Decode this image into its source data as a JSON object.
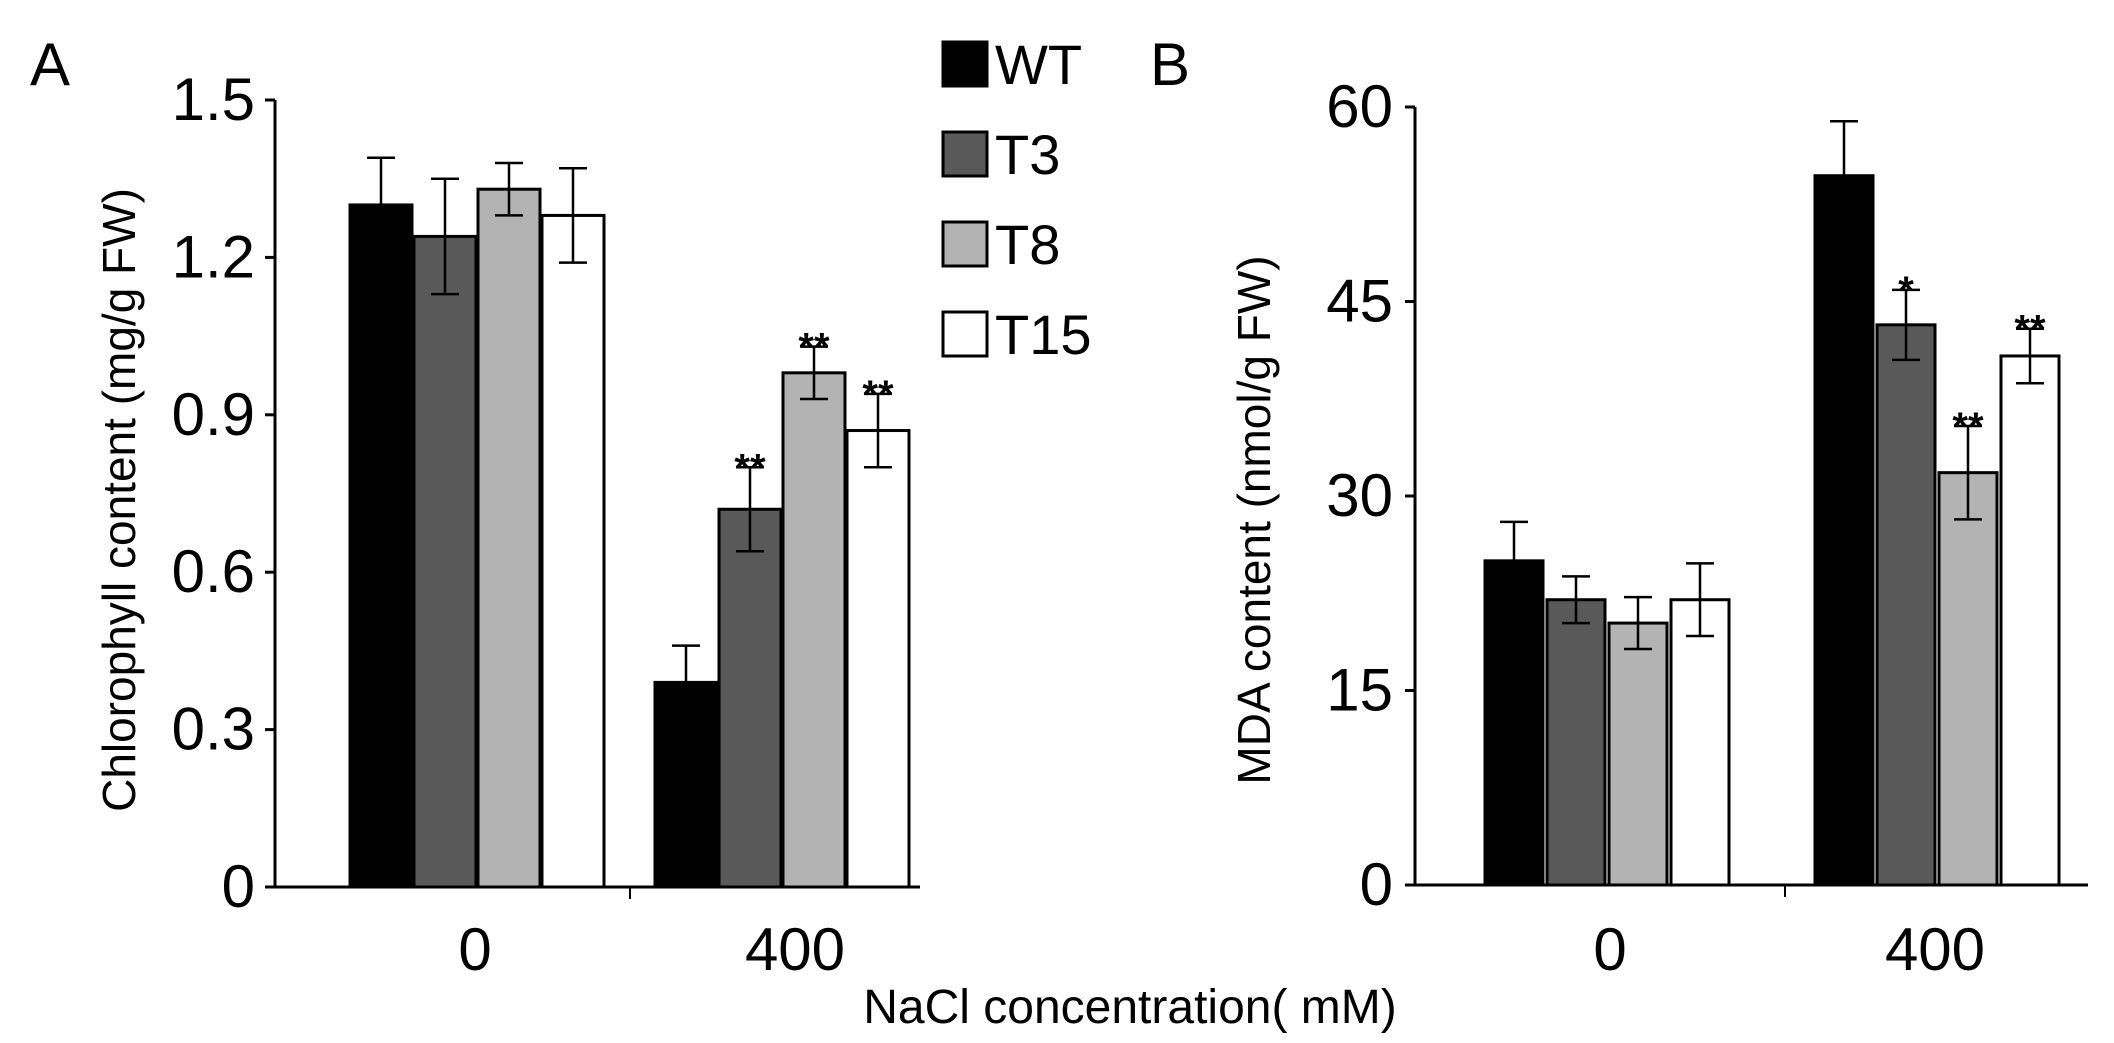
{
  "figure": {
    "xlabel": "NaCl concentration( mM)"
  },
  "legend": [
    {
      "name": "WT",
      "color": "#000000"
    },
    {
      "name": "T3",
      "color": "#595959"
    },
    {
      "name": "T8",
      "color": "#b3b3b3"
    },
    {
      "name": "T15",
      "color": "#ffffff"
    }
  ],
  "chart_data": [
    {
      "panel": "A",
      "type": "bar",
      "ylabel": "Chlorophyll content (mg/g FW)",
      "xlabel": "NaCl concentration( mM)",
      "categories": [
        "0",
        "400"
      ],
      "ylim": [
        0,
        1.5
      ],
      "yticks": [
        0,
        0.3,
        0.6,
        0.9,
        1.2,
        1.5
      ],
      "ytick_labels": [
        "0",
        "0.3",
        "0.6",
        "0.9",
        "1.2",
        "1.5"
      ],
      "series": [
        {
          "name": "WT",
          "values": [
            1.3,
            0.39
          ],
          "errors": [
            0.09,
            0.07
          ],
          "sig": [
            "",
            ""
          ]
        },
        {
          "name": "T3",
          "values": [
            1.24,
            0.72
          ],
          "errors": [
            0.11,
            0.08
          ],
          "sig": [
            "",
            "**"
          ]
        },
        {
          "name": "T8",
          "values": [
            1.33,
            0.98
          ],
          "errors": [
            0.05,
            0.05
          ],
          "sig": [
            "",
            "**"
          ]
        },
        {
          "name": "T15",
          "values": [
            1.28,
            0.87
          ],
          "errors": [
            0.09,
            0.07
          ],
          "sig": [
            "",
            "**"
          ]
        }
      ]
    },
    {
      "panel": "B",
      "type": "bar",
      "ylabel": "MDA content (nmol/g FW)",
      "xlabel": "NaCl concentration( mM)",
      "categories": [
        "0",
        "400"
      ],
      "ylim": [
        0,
        60
      ],
      "yticks": [
        0,
        15,
        30,
        45,
        60
      ],
      "ytick_labels": [
        "0",
        "15",
        "30",
        "45",
        "60"
      ],
      "series": [
        {
          "name": "WT",
          "values": [
            25.0,
            54.7
          ],
          "errors": [
            3.0,
            4.2
          ],
          "sig": [
            "",
            ""
          ]
        },
        {
          "name": "T3",
          "values": [
            22.0,
            43.2
          ],
          "errors": [
            1.8,
            2.7
          ],
          "sig": [
            "",
            "*"
          ]
        },
        {
          "name": "T8",
          "values": [
            20.2,
            31.8
          ],
          "errors": [
            2.0,
            3.6
          ],
          "sig": [
            "",
            "**"
          ]
        },
        {
          "name": "T15",
          "values": [
            22.0,
            40.8
          ],
          "errors": [
            2.8,
            2.1
          ],
          "sig": [
            "",
            "**"
          ]
        }
      ]
    }
  ]
}
